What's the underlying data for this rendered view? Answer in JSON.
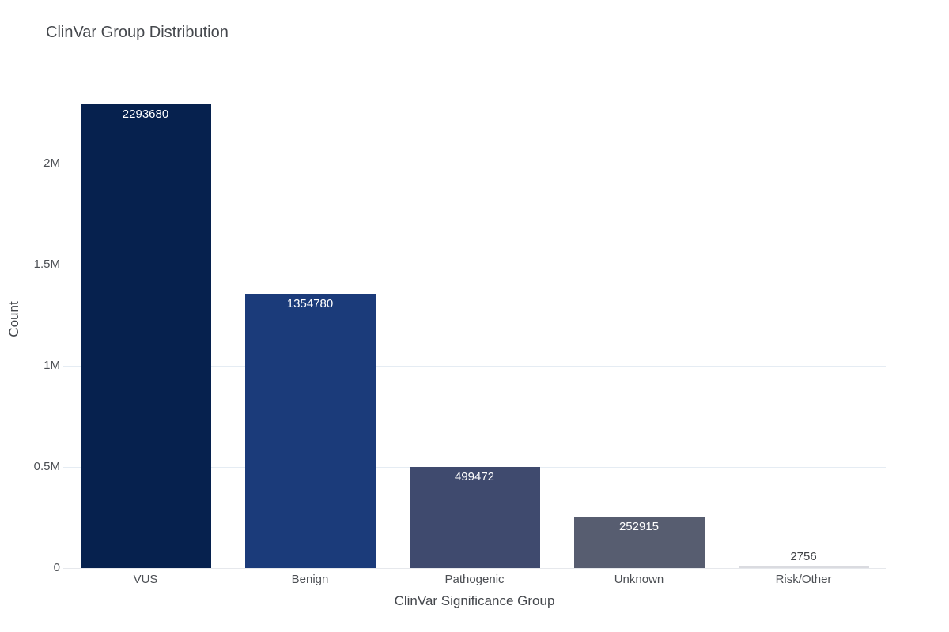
{
  "page": {
    "background": "#ffffff"
  },
  "chart_data": {
    "type": "bar",
    "title": "ClinVar Group Distribution",
    "xlabel": "ClinVar Significance Group",
    "ylabel": "Count",
    "categories": [
      "VUS",
      "Benign",
      "Pathogenic",
      "Unknown",
      "Risk/Other"
    ],
    "values": [
      2293680,
      1354780,
      499472,
      252915,
      2756
    ],
    "value_labels": [
      "2293680",
      "1354780",
      "499472",
      "252915",
      "2756"
    ],
    "bar_colors": [
      "#06214e",
      "#1b3b7a",
      "#3f4a6e",
      "#575d70",
      "#dadbe0"
    ],
    "yticks": [
      {
        "label": "0",
        "value": 0
      },
      {
        "label": "0.5M",
        "value": 500000
      },
      {
        "label": "1M",
        "value": 1000000
      },
      {
        "label": "1.5M",
        "value": 1500000
      },
      {
        "label": "2M",
        "value": 2000000
      }
    ],
    "ylim": [
      0,
      2460000
    ],
    "grid": true,
    "legend": "none",
    "colors": {
      "grid_line": "#e5ecf3",
      "zero_line": "#e6e8ec",
      "title_text": "#45484d",
      "axis_title_text": "#44474c",
      "tick_text": "#4c4f54",
      "value_label_inside": "#ffffff",
      "value_label_outside": "#3f4145"
    }
  }
}
